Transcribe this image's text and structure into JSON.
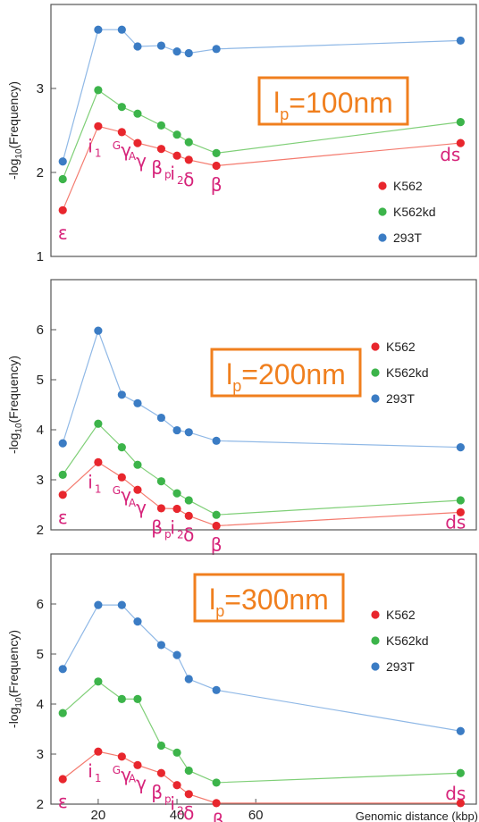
{
  "colors": {
    "K562": "#e8262d",
    "K562kd": "#3cb44a",
    "293T": "#3b7cc4",
    "K562_line": "#f47a6e",
    "K562kd_line": "#7fcf77",
    "293T_line": "#8fb8e6",
    "label": "#d6237a",
    "box": "#f07f1e"
  },
  "x_axis": {
    "label": "Genomic distance (kbp)",
    "ticks": [
      "20",
      "40",
      "60"
    ]
  },
  "y_axis": {
    "label_prefix": "-log",
    "label_sub": "10",
    "label_suffix": "(Frequency)"
  },
  "legend": [
    "K562",
    "K562kd",
    "293T"
  ],
  "chart_data": [
    {
      "type": "line",
      "title_prefix": "l",
      "title_sub": "p",
      "title_suffix": "=100nm",
      "x": [
        11,
        20,
        26,
        30,
        36,
        40,
        43,
        50,
        112
      ],
      "ylim": [
        1,
        4
      ],
      "yticks": [
        "1",
        "2",
        "3"
      ],
      "ytick_values": [
        1,
        2,
        3
      ],
      "xticks": [],
      "xticks_values": [],
      "series": [
        {
          "name": "K562",
          "values": [
            1.55,
            2.55,
            2.48,
            2.35,
            2.28,
            2.2,
            2.15,
            2.08,
            2.35
          ]
        },
        {
          "name": "K562kd",
          "values": [
            1.92,
            2.98,
            2.78,
            2.7,
            2.56,
            2.45,
            2.36,
            2.23,
            2.6
          ]
        },
        {
          "name": "293T",
          "values": [
            2.13,
            3.7,
            3.7,
            3.5,
            3.51,
            3.44,
            3.42,
            3.47,
            3.57
          ]
        }
      ],
      "gene_labels": [
        "ε",
        "i1",
        "Gγ",
        "Aγ",
        "βp",
        "i2",
        "δ",
        "β",
        "ds"
      ]
    },
    {
      "type": "line",
      "title_prefix": "l",
      "title_sub": "p",
      "title_suffix": "=200nm",
      "x": [
        11,
        20,
        26,
        30,
        36,
        40,
        43,
        50,
        112
      ],
      "ylim": [
        2,
        7
      ],
      "yticks": [
        "2",
        "3",
        "4",
        "5",
        "6"
      ],
      "ytick_values": [
        2,
        3,
        4,
        5,
        6
      ],
      "xticks": [],
      "xticks_values": [],
      "series": [
        {
          "name": "K562",
          "values": [
            2.7,
            3.35,
            3.05,
            2.8,
            2.43,
            2.42,
            2.28,
            2.08,
            2.35
          ]
        },
        {
          "name": "K562kd",
          "values": [
            3.1,
            4.12,
            3.65,
            3.3,
            2.97,
            2.73,
            2.59,
            2.3,
            2.59
          ]
        },
        {
          "name": "293T",
          "values": [
            3.73,
            5.98,
            4.7,
            4.53,
            4.24,
            3.99,
            3.95,
            3.78,
            3.65
          ]
        }
      ],
      "gene_labels": [
        "ε",
        "i1",
        "Gγ",
        "Aγ",
        "βp",
        "i2",
        "δ",
        "β",
        "ds"
      ]
    },
    {
      "type": "line",
      "title_prefix": "l",
      "title_sub": "p",
      "title_suffix": "=300nm",
      "x": [
        11,
        20,
        26,
        30,
        36,
        40,
        43,
        50,
        112
      ],
      "ylim": [
        2,
        7
      ],
      "yticks": [
        "2",
        "3",
        "4",
        "5",
        "6"
      ],
      "ytick_values": [
        2,
        3,
        4,
        5,
        6
      ],
      "xticks": [
        "20",
        "40",
        "60"
      ],
      "xticks_values": [
        20,
        40,
        60
      ],
      "series": [
        {
          "name": "K562",
          "values": [
            2.5,
            3.05,
            2.95,
            2.78,
            2.62,
            2.38,
            2.2,
            2.02,
            2.02
          ]
        },
        {
          "name": "K562kd",
          "values": [
            3.82,
            4.45,
            4.1,
            4.1,
            3.17,
            3.03,
            2.67,
            2.43,
            2.62
          ]
        },
        {
          "name": "293T",
          "values": [
            4.7,
            5.98,
            5.98,
            5.65,
            5.18,
            4.98,
            4.5,
            4.28,
            3.46
          ]
        }
      ],
      "gene_labels": [
        "ε",
        "i1",
        "Gγ",
        "Aγ",
        "βp",
        "i2",
        "δ",
        "β",
        "ds"
      ]
    }
  ]
}
